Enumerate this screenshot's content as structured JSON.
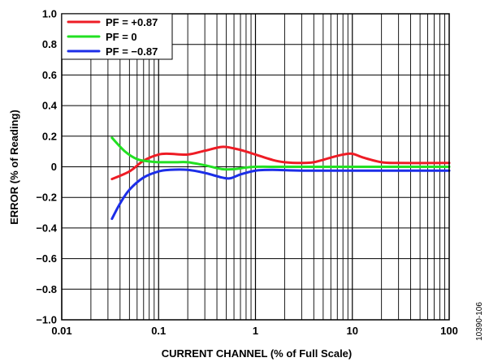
{
  "chart_data": {
    "type": "line",
    "xlabel": "CURRENT CHANNEL (% of Full Scale)",
    "ylabel": "ERROR (% of Reading)",
    "x_scale": "log",
    "xlim": [
      0.01,
      100
    ],
    "ylim": [
      -1.0,
      1.0
    ],
    "grid": true,
    "legend_position": "top-left",
    "x_ticks": [
      0.01,
      0.1,
      1,
      10,
      100
    ],
    "x_tick_labels": [
      "0.01",
      "0.1",
      "1",
      "10",
      "100"
    ],
    "y_ticks": [
      -1.0,
      -0.8,
      -0.6,
      -0.4,
      -0.2,
      0,
      0.2,
      0.4,
      0.6,
      0.8,
      1.0
    ],
    "y_tick_labels": [
      "−1.0",
      "−0.8",
      "−0.6",
      "−0.4",
      "−0.2",
      "0",
      "0.2",
      "0.4",
      "0.6",
      "0.8",
      "1.0"
    ],
    "series": [
      {
        "name": "PF = +0.87",
        "color": "#ee1c25",
        "points": [
          [
            0.033,
            -0.08
          ],
          [
            0.05,
            -0.03
          ],
          [
            0.07,
            0.04
          ],
          [
            0.1,
            0.08
          ],
          [
            0.13,
            0.085
          ],
          [
            0.2,
            0.08
          ],
          [
            0.3,
            0.105
          ],
          [
            0.45,
            0.13
          ],
          [
            0.6,
            0.12
          ],
          [
            0.8,
            0.1
          ],
          [
            1.0,
            0.08
          ],
          [
            1.5,
            0.045
          ],
          [
            2.0,
            0.03
          ],
          [
            3.0,
            0.025
          ],
          [
            4.0,
            0.03
          ],
          [
            6.0,
            0.06
          ],
          [
            8.0,
            0.08
          ],
          [
            10.0,
            0.085
          ],
          [
            13.0,
            0.06
          ],
          [
            20.0,
            0.03
          ],
          [
            30.0,
            0.025
          ],
          [
            100.0,
            0.025
          ]
        ]
      },
      {
        "name": "PF = 0",
        "color": "#22e022",
        "points": [
          [
            0.033,
            0.19
          ],
          [
            0.045,
            0.1
          ],
          [
            0.06,
            0.05
          ],
          [
            0.08,
            0.035
          ],
          [
            0.1,
            0.03
          ],
          [
            0.15,
            0.03
          ],
          [
            0.2,
            0.03
          ],
          [
            0.3,
            0.01
          ],
          [
            0.45,
            -0.015
          ],
          [
            0.6,
            -0.015
          ],
          [
            0.8,
            -0.005
          ],
          [
            1.0,
            0.0
          ],
          [
            2.0,
            0.0
          ],
          [
            10.0,
            0.0
          ],
          [
            100.0,
            0.0
          ]
        ]
      },
      {
        "name": "PF = −0.87",
        "color": "#1c2ee8",
        "points": [
          [
            0.033,
            -0.34
          ],
          [
            0.04,
            -0.24
          ],
          [
            0.05,
            -0.15
          ],
          [
            0.07,
            -0.07
          ],
          [
            0.1,
            -0.03
          ],
          [
            0.13,
            -0.02
          ],
          [
            0.2,
            -0.02
          ],
          [
            0.3,
            -0.04
          ],
          [
            0.45,
            -0.07
          ],
          [
            0.55,
            -0.075
          ],
          [
            0.7,
            -0.05
          ],
          [
            1.0,
            -0.025
          ],
          [
            1.5,
            -0.02
          ],
          [
            3.0,
            -0.025
          ],
          [
            10.0,
            -0.025
          ],
          [
            100.0,
            -0.025
          ]
        ]
      }
    ]
  },
  "figure_id": "10390-106"
}
